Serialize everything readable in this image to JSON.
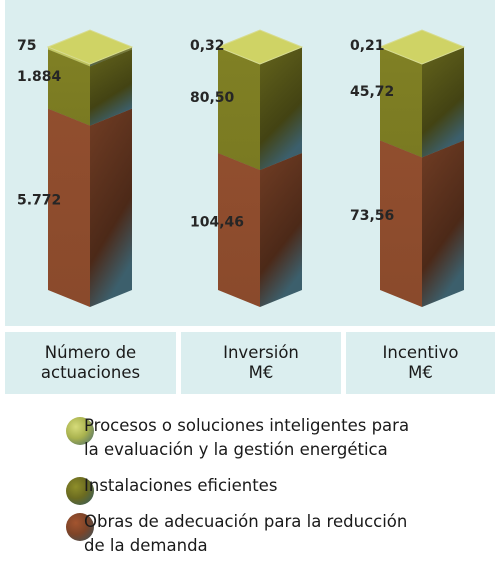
{
  "chart_data": {
    "type": "bar",
    "stacked": true,
    "categories": [
      "Número de actuaciones",
      "Inversión M€",
      "Incentivo M€"
    ],
    "category_lines": [
      [
        "Número de",
        "actuaciones"
      ],
      [
        "Inversión",
        "M€"
      ],
      [
        "Incentivo",
        "M€"
      ]
    ],
    "series": [
      {
        "name": "Obras de adecuación para la reducción de la demanda",
        "values": [
          5772,
          104.46,
          73.56
        ],
        "labels": [
          "5.772",
          "104,46",
          "73,56"
        ]
      },
      {
        "name": "Instalaciones eficientes",
        "values": [
          1884,
          80.5,
          45.72
        ],
        "labels": [
          "1.884",
          "80,50",
          "45,72"
        ]
      },
      {
        "name": "Procesos o soluciones inteligentes para la evaluación y la gestión energética",
        "values": [
          75,
          0.32,
          0.21
        ],
        "labels": [
          "75",
          "0,32",
          "0,21"
        ]
      }
    ],
    "legend_lines": [
      [
        "Procesos o soluciones inteligentes para",
        "la evaluación y la gestión energética"
      ],
      [
        "Instalaciones eficientes"
      ],
      [
        "Obras de adecuación para la reducción",
        "de la demanda"
      ]
    ],
    "colors": {
      "obras": "#8a4a2c",
      "instalaciones": "#7a7a22",
      "procesos": "#bcc05c",
      "panel": "#dbeeef",
      "steel": "#3c5f6c"
    },
    "legend_position": "bottom"
  }
}
